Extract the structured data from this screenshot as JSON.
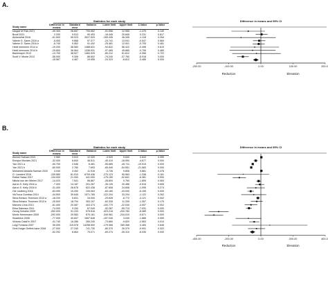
{
  "panels": [
    {
      "label": "A.",
      "headers": {
        "study": "Study name",
        "stats": "Statistics for each study",
        "plot": "Difference in means and 95% CI",
        "diff": "Difference in means",
        "se": "Standard error",
        "var": "Variance",
        "lower": "Lower limit",
        "upper": "Upper limit",
        "z": "Z-Value",
        "p": "p-Value"
      },
      "rows": [
        {
          "study": "Naqavi M Rizk 2021",
          "diff": "-39.300",
          "se": "26.657",
          "var": "700.552",
          "lower": "-91.556",
          "upper": "12.955",
          "z": "-1.476",
          "p": "0.140",
          "mean": -39.3,
          "lo": -91.556,
          "hi": 12.955
        },
        {
          "study": "Brodi 2021",
          "diff": "2.200",
          "se": "9.513",
          "var": "90.493",
          "lower": "-16.445",
          "upper": "20.845",
          "z": "0.231",
          "p": "0.817",
          "mean": 2.2,
          "lo": -16.445,
          "hi": 20.845
        },
        {
          "study": "Alzhenefat 2016",
          "diff": "-61.500",
          "se": "55.023",
          "var": "3027.529",
          "lower": "-169.345",
          "upper": "46.345",
          "z": "-1.118",
          "p": "0.264",
          "mean": -61.5,
          "lo": -169.345,
          "hi": 46.345
        },
        {
          "study": "Valerie G. Sams 2016 a",
          "diff": "-5.400",
          "se": "9.868",
          "var": "97.377",
          "lower": "-24.741",
          "upper": "13.941",
          "z": "-0.547",
          "p": "0.584",
          "mean": -5.4,
          "lo": -24.741,
          "hi": 13.941
        },
        {
          "study": "Valerie G. Sams 2016 b",
          "diff": "-6.740",
          "se": "9.562",
          "var": "91.432",
          "lower": "-25.481",
          "upper": "12.001",
          "z": "-0.705",
          "p": "0.481",
          "mean": -6.74,
          "lo": -25.481,
          "hi": 12.001
        },
        {
          "study": "Heidi Immonen 2014 a",
          "diff": "-19.200",
          "se": "38.583",
          "var": "1488.631",
          "lower": "-94.822",
          "upper": "56.422",
          "z": "-0.498",
          "p": "0.619",
          "mean": -19.2,
          "lo": -94.822,
          "hi": 56.422
        },
        {
          "study": "Heidi Immonen 2014 b",
          "diff": "-25.800",
          "se": "36.564",
          "var": "1336.931",
          "lower": "-97.465",
          "upper": "45.865",
          "z": "-0.706",
          "p": "0.480",
          "mean": -25.8,
          "lo": -97.465,
          "hi": 45.865
        },
        {
          "study": "Bachmayer 2013",
          "diff": "-13.700",
          "se": "38.527",
          "var": "1484.329",
          "lower": "-89.212",
          "upper": "61.812",
          "z": "-0.356",
          "p": "0.722",
          "mean": -13.7,
          "lo": -89.212,
          "hi": 61.812
        },
        {
          "study": "Scott V. Monte 2012",
          "diff": "-56.000",
          "se": "9.306",
          "var": "86.602",
          "lower": "-74.240",
          "upper": "-37.760",
          "z": "-6.018",
          "p": "0.000",
          "mean": -56.0,
          "lo": -74.24,
          "hi": -37.76
        },
        {
          "study": "",
          "diff": "-15.567",
          "se": "4.467",
          "var": "19.955",
          "lower": "-24.323",
          "upper": "-6.812",
          "z": "-3.485",
          "p": "0.000",
          "mean": -15.567,
          "lo": -24.323,
          "hi": -6.812,
          "summary": true
        }
      ],
      "axis": {
        "min": -200,
        "max": 200,
        "ticks": [
          -200,
          -100,
          0,
          100,
          200
        ],
        "tick_labels": [
          "-200.00",
          "-100.00",
          "0.00",
          "100.00",
          "200.00"
        ]
      },
      "captions": {
        "left": "Reduction",
        "right": "Elevation"
      }
    },
    {
      "label": "B.",
      "headers": {
        "study": "Study name",
        "stats": "Statistics for each study",
        "plot": "Difference in means and 95% CI",
        "diff": "Difference in means",
        "se": "Standard error",
        "var": "Variance",
        "lower": "Lower limit",
        "upper": "Upper limit",
        "z": "Z-Value",
        "p": "p-Value"
      },
      "rows": [
        {
          "study": "Ahmed Salman 2021",
          "diff": "2.960",
          "se": "3.510",
          "var": "12.320",
          "lower": "-3.920",
          "upper": "9.840",
          "z": "0.843",
          "p": "0.399",
          "mean": 2.96,
          "lo": -3.92,
          "hi": 9.84
        },
        {
          "study": "Enrique Morales 2021",
          "diff": "-32.000",
          "se": "6.840",
          "var": "46.811",
          "lower": "-45.410",
          "upper": "-18.590",
          "z": "-4.677",
          "p": "0.000",
          "mean": -32.0,
          "lo": -45.41,
          "hi": -18.59
        },
        {
          "study": "Yan 2021 a",
          "diff": "-50.700",
          "se": "2.546",
          "var": "6.481",
          "lower": "-55.689",
          "upper": "-45.711",
          "z": "-19.915",
          "p": "0.000",
          "mean": -50.7,
          "lo": -55.689,
          "hi": -45.711
        },
        {
          "study": "Yan 2021 b",
          "diff": "-60.000",
          "se": "2.780",
          "var": "7.693",
          "lower": "-65.449",
          "upper": "-54.551",
          "z": "-21.583",
          "p": "0.000",
          "mean": -60.0,
          "lo": -65.449,
          "hi": -54.551
        },
        {
          "study": "Mohamed Abdalla Salman 2020",
          "diff": "3.040",
          "se": "3.452",
          "var": "11.916",
          "lower": "-3.726",
          "upper": "9.806",
          "z": "0.881",
          "p": "0.378",
          "mean": 3.04,
          "lo": -3.726,
          "hi": 9.806
        },
        {
          "study": "O. Lambert 2016",
          "diff": "-109.580",
          "se": "81.910",
          "var": "6709.436",
          "lower": "-270.123",
          "upper": "50.963",
          "z": "-1.338",
          "p": "0.181",
          "mean": -109.58,
          "lo": -270.123,
          "hi": 50.963
        },
        {
          "study": "Rafrat Yadav 2017",
          "diff": "-134.000",
          "se": "21.000",
          "var": "441.000",
          "lower": "-175.159",
          "upper": "-92.841",
          "z": "-6.381",
          "p": "0.000",
          "mean": -134.0,
          "lo": -175.159,
          "hi": -92.841
        },
        {
          "study": "Nikola van der Wielen 2017",
          "diff": "-14.020",
          "se": "7.541",
          "var": "56.867",
          "lower": "-28.800",
          "upper": "0.760",
          "z": "-1.859",
          "p": "0.063",
          "mean": -14.02,
          "lo": -28.8,
          "hi": 0.76
        },
        {
          "study": "Aaron S. Kelly 2016 a",
          "diff": "-7.320",
          "se": "14.187",
          "var": "201.267",
          "lower": "-35.126",
          "upper": "20.486",
          "z": "-0.516",
          "p": "0.606",
          "mean": -7.32,
          "lo": -35.126,
          "hi": 20.486
        },
        {
          "study": "Aaron S. Kelly 2016 b",
          "diff": "-31.400",
          "se": "28.678",
          "var": "822.438",
          "lower": "-87.608",
          "upper": "24.808",
          "z": "-1.095",
          "p": "0.274",
          "mean": -31.4,
          "lo": -87.608,
          "hi": 24.808
        },
        {
          "study": "Ole Lindberg 2016",
          "diff": "-63.090",
          "se": "10.250",
          "var": "105.063",
          "lower": "-83.180",
          "upper": "-43.000",
          "z": "-6.155",
          "p": "0.000",
          "mean": -63.09,
          "lo": -83.18,
          "hi": -43.0
        },
        {
          "study": "VisTroca Gumbau 2014",
          "diff": "-44.500",
          "se": "39.645",
          "var": "1571.765",
          "lower": "-122.204",
          "upper": "33.204",
          "z": "-1.122",
          "p": "0.262",
          "mean": -44.5,
          "lo": -122.204,
          "hi": 33.204
        },
        {
          "study": "Stina Brinkov Thomsen 2013 a",
          "diff": "-18.200",
          "se": "5.831",
          "var": "34.000",
          "lower": "-29.628",
          "upper": "-6.772",
          "z": "-3.121",
          "p": "0.002",
          "mean": -18.2,
          "lo": -29.628,
          "hi": -6.772
        },
        {
          "study": "Stina Brinkov Thomsen 2013 b",
          "diff": "-25.500",
          "se": "18.794",
          "var": "353.197",
          "lower": "-62.335",
          "upper": "11.335",
          "z": "-1.357",
          "p": "0.175",
          "mean": -25.5,
          "lo": -62.335,
          "hi": 11.335
        },
        {
          "study": "Marcelo Lima 2013",
          "diff": "-61.400",
          "se": "20.087",
          "var": "403.474",
          "lower": "-100.770",
          "upper": "-22.030",
          "z": "-3.057",
          "p": "0.002",
          "mean": -61.4,
          "lo": -100.77,
          "hi": -22.03
        },
        {
          "study": "Elisa Dalmass 2011",
          "diff": "-74.000",
          "se": "9.330",
          "var": "87.049",
          "lower": "-92.287",
          "upper": "-55.713",
          "z": "-7.931",
          "p": "0.000",
          "mean": -74.0,
          "lo": -92.287,
          "hi": -55.713
        },
        {
          "study": "Georg Schaller 2009",
          "diff": "-262.000",
          "se": "31.233",
          "var": "975.516",
          "lower": "-323.216",
          "upper": "-200.784",
          "z": "-8.389",
          "p": "0.000",
          "mean": -262.0,
          "lo": -323.216,
          "hi": -200.784
        },
        {
          "study": "Moritz Heinemann 2009",
          "diff": "-292.000",
          "se": "29.583",
          "var": "875.161",
          "lower": "-349.981",
          "upper": "-234.019",
          "z": "-9.871",
          "p": "0.000",
          "mean": -292.0,
          "lo": -349.981,
          "hi": -234.019
        },
        {
          "study": "Swarbrick 2008",
          "diff": "-77.000",
          "se": "40.837",
          "var": "1667.648",
          "lower": "-157.040",
          "upper": "3.040",
          "z": "-1.886",
          "p": "0.059",
          "mean": -77.0,
          "lo": -157.04,
          "hi": 3.04
        },
        {
          "study": "Victoria Catal?n 2007",
          "diff": "-41.740",
          "se": "16.286",
          "var": "265.240",
          "lower": "-73.660",
          "upper": "-9.820",
          "z": "-2.563",
          "p": "0.010",
          "mean": -41.74,
          "lo": -73.66,
          "hi": -9.82
        },
        {
          "study": "Luigi Fontana 2007",
          "diff": "55.000",
          "se": "119.578",
          "var": "14298.500",
          "lower": "-179.368",
          "upper": "289.368",
          "z": "0.460",
          "p": "0.646",
          "mean": 55.0,
          "lo": -179.368,
          "hi": 289.368
        },
        {
          "study": "Gert-Holger Seifert-hane 2006",
          "diff": "-27.000",
          "se": "27.240",
          "var": "741.730",
          "lower": "-80.379",
          "upper": "26.379",
          "z": "-0.991",
          "p": "0.322",
          "mean": -27.0,
          "lo": -80.379,
          "hi": 26.379
        },
        {
          "study": "",
          "diff": "-52.292",
          "se": "8.664",
          "var": "75.071",
          "lower": "-69.274",
          "upper": "-35.310",
          "z": "-6.035",
          "p": "0.000",
          "mean": -52.292,
          "lo": -69.274,
          "hi": -35.31,
          "summary": true
        }
      ],
      "axis": {
        "min": -400,
        "max": 400,
        "ticks": [
          -400,
          -200,
          0,
          200,
          400
        ],
        "tick_labels": [
          "-400.00",
          "-200.00",
          "0.00",
          "200.00",
          "400.00"
        ]
      },
      "captions": {
        "left": "Reduction",
        "right": "Elevation"
      }
    }
  ]
}
